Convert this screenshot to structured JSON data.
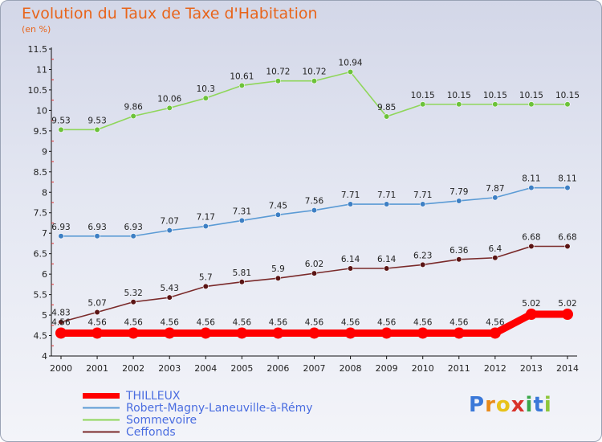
{
  "chart_data": {
    "type": "line",
    "title": "Evolution du Taux de Taxe d'Habitation",
    "subtitle": "(en %)",
    "x": [
      "2000",
      "2001",
      "2002",
      "2003",
      "2004",
      "2005",
      "2006",
      "2007",
      "2008",
      "2009",
      "2010",
      "2011",
      "2012",
      "2013",
      "2014"
    ],
    "y_ticks": [
      "4",
      "4.5",
      "5",
      "5.5",
      "6",
      "6.5",
      "7",
      "7.5",
      "8",
      "8.5",
      "9",
      "9.5",
      "10",
      "10.5",
      "11",
      "11.5"
    ],
    "ylim": [
      4,
      11.5
    ],
    "grid": false,
    "legend_position": "bottom-left",
    "series": [
      {
        "name": "THILLEUX",
        "color": "#ff0000",
        "marker_color": "#ff0000",
        "values": [
          4.56,
          4.56,
          4.56,
          4.56,
          4.56,
          4.56,
          4.56,
          4.56,
          4.56,
          4.56,
          4.56,
          4.56,
          4.56,
          5.02,
          5.02
        ],
        "labels": [
          "4.56",
          "4.56",
          "4.56",
          "4.56",
          "4.56",
          "4.56",
          "4.56",
          "4.56",
          "4.56",
          "4.56",
          "4.56",
          "4.56",
          "4.56",
          "5.02",
          "5.02"
        ]
      },
      {
        "name": "Robert-Magny-Laneuville-à-Rémy",
        "color": "#5b9bd5",
        "marker_color": "#3d7fc4",
        "values": [
          6.93,
          6.93,
          6.93,
          7.07,
          7.17,
          7.31,
          7.45,
          7.56,
          7.71,
          7.71,
          7.71,
          7.79,
          7.87,
          8.11,
          8.11
        ],
        "labels": [
          "6.93",
          "6.93",
          "6.93",
          "7.07",
          "7.17",
          "7.31",
          "7.45",
          "7.56",
          "7.71",
          "7.71",
          "7.71",
          "7.79",
          "7.87",
          "8.11",
          "8.11"
        ]
      },
      {
        "name": "Sommevoire",
        "color": "#8fd65a",
        "marker_color": "#6cc23a",
        "values": [
          9.53,
          9.53,
          9.86,
          10.06,
          10.3,
          10.61,
          10.72,
          10.72,
          10.94,
          9.85,
          10.15,
          10.15,
          10.15,
          10.15,
          10.15
        ],
        "labels": [
          "9.53",
          "9.53",
          "9.86",
          "10.06",
          "10.3",
          "10.61",
          "10.72",
          "10.72",
          "10.94",
          "9.85",
          "10.15",
          "10.15",
          "10.15",
          "10.15",
          "10.15"
        ]
      },
      {
        "name": "Ceffonds",
        "color": "#7a2a2a",
        "marker_color": "#5a1414",
        "values": [
          4.83,
          5.07,
          5.32,
          5.43,
          5.7,
          5.81,
          5.9,
          6.02,
          6.14,
          6.14,
          6.23,
          6.36,
          6.4,
          6.68,
          6.68
        ],
        "labels": [
          "4.83",
          "5.07",
          "5.32",
          "5.43",
          "5.7",
          "5.81",
          "5.9",
          "6.02",
          "6.14",
          "6.14",
          "6.23",
          "6.36",
          "6.4",
          "6.68",
          "6.68"
        ]
      }
    ]
  },
  "logo": {
    "letters": [
      "P",
      "r",
      "o",
      "x",
      "i",
      "t",
      "i"
    ],
    "colors": [
      "#3a78d8",
      "#e88a1a",
      "#e8c21a",
      "#d8322a",
      "#3aa84a",
      "#3a78d8",
      "#8ec63a"
    ]
  }
}
